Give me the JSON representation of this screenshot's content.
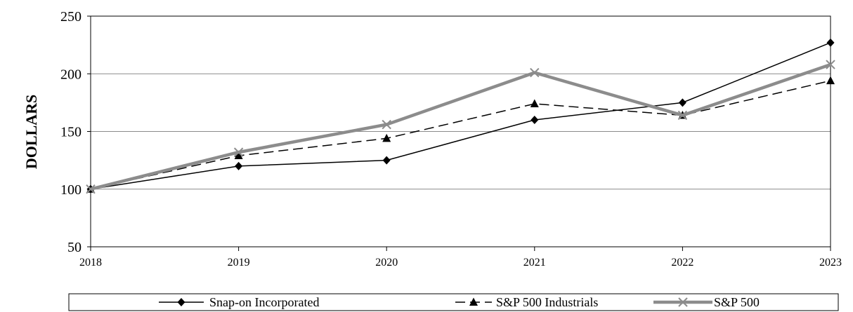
{
  "chart_data": {
    "type": "line",
    "title": "",
    "xlabel": "",
    "ylabel": "DOLLARS",
    "x": [
      "2018",
      "2019",
      "2020",
      "2021",
      "2022",
      "2023"
    ],
    "ylim": [
      50,
      250
    ],
    "yticks": [
      "50",
      "100",
      "150",
      "200",
      "250"
    ],
    "grid": "horizontal",
    "legend_position": "bottom",
    "series": [
      {
        "name": "Snap-on Incorporated",
        "values": [
          100,
          120,
          125,
          160,
          175,
          227
        ],
        "color": "#000000",
        "line_style": "solid",
        "marker": "diamond"
      },
      {
        "name": "S&P 500 Industrials",
        "values": [
          100,
          129,
          144,
          174,
          164,
          194
        ],
        "color": "#000000",
        "line_style": "dashed",
        "marker": "triangle"
      },
      {
        "name": "S&P 500",
        "values": [
          100,
          132,
          156,
          201,
          164,
          208
        ],
        "color": "#8c8c8c",
        "line_style": "solid-thick",
        "marker": "x"
      }
    ]
  }
}
